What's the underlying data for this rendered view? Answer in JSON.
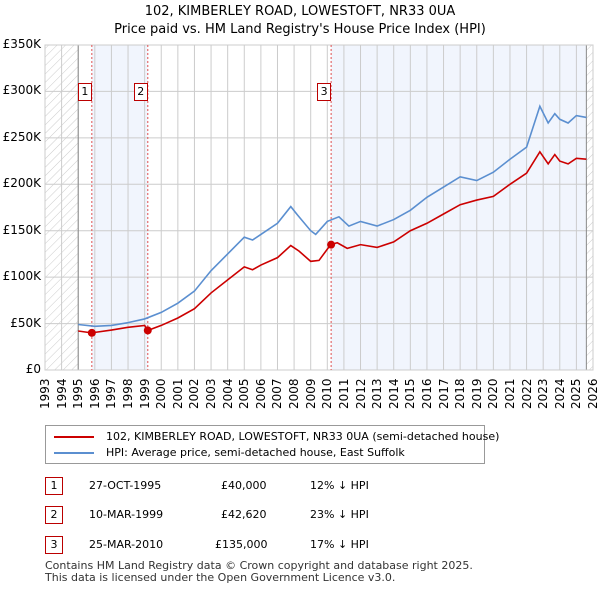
{
  "chart_data": {
    "type": "line",
    "title": "102, KIMBERLEY ROAD, LOWESTOFT, NR33 0UA",
    "subtitle": "Price paid vs. HM Land Registry's House Price Index (HPI)",
    "xlim": [
      1993,
      2026
    ],
    "ylim": [
      0,
      350000
    ],
    "y_ticks": [
      {
        "v": 0,
        "label": "£0"
      },
      {
        "v": 50000,
        "label": "£50K"
      },
      {
        "v": 100000,
        "label": "£100K"
      },
      {
        "v": 150000,
        "label": "£150K"
      },
      {
        "v": 200000,
        "label": "£200K"
      },
      {
        "v": 250000,
        "label": "£250K"
      },
      {
        "v": 300000,
        "label": "£300K"
      },
      {
        "v": 350000,
        "label": "£350K"
      }
    ],
    "x_ticks": [
      "1993",
      "1994",
      "1995",
      "1996",
      "1997",
      "1998",
      "1999",
      "2000",
      "2001",
      "2002",
      "2003",
      "2004",
      "2005",
      "2006",
      "2007",
      "2008",
      "2009",
      "2010",
      "2011",
      "2012",
      "2013",
      "2014",
      "2015",
      "2016",
      "2017",
      "2018",
      "2019",
      "2020",
      "2021",
      "2022",
      "2023",
      "2024",
      "2025",
      "2026"
    ],
    "series": [
      {
        "name": "102, KIMBERLEY ROAD, LOWESTOFT, NR33 0UA (semi-detached house)",
        "color": "#cc0000",
        "x": [
          1995,
          1995.8,
          1997,
          1998,
          1999,
          1999.2,
          2000,
          2001,
          2002,
          2003,
          2004,
          2005,
          2005.5,
          2006,
          2007,
          2007.8,
          2008.3,
          2009,
          2009.5,
          2010.2,
          2010.6,
          2011.2,
          2012,
          2013,
          2014,
          2015,
          2016,
          2017,
          2018,
          2019,
          2020,
          2021,
          2022,
          2022.8,
          2023.3,
          2023.7,
          2024,
          2024.5,
          2025,
          2025.6
        ],
        "y": [
          42000,
          40000,
          43000,
          46000,
          48000,
          42620,
          48000,
          56000,
          66000,
          83000,
          97000,
          111000,
          108000,
          113000,
          121000,
          134000,
          128000,
          117000,
          118000,
          135000,
          137000,
          131000,
          135000,
          132000,
          138000,
          150000,
          158000,
          168000,
          178000,
          183000,
          187000,
          200000,
          212000,
          235000,
          222000,
          232000,
          225000,
          222000,
          228000,
          227000
        ]
      },
      {
        "name": "HPI: Average price, semi-detached house, East Suffolk",
        "color": "#5b8fd0",
        "x": [
          1995,
          1996,
          1997,
          1998,
          1999,
          2000,
          2001,
          2002,
          2003,
          2004,
          2005,
          2005.5,
          2006,
          2007,
          2007.8,
          2008.2,
          2009,
          2009.3,
          2010,
          2010.7,
          2011.3,
          2012,
          2013,
          2014,
          2015,
          2016,
          2017,
          2018,
          2019,
          2020,
          2021,
          2022,
          2022.8,
          2023.3,
          2023.7,
          2024,
          2024.5,
          2025,
          2025.6
        ],
        "y": [
          49000,
          47000,
          48000,
          51000,
          55000,
          62000,
          72000,
          85000,
          107000,
          125000,
          143000,
          140000,
          146000,
          158000,
          176000,
          167000,
          150000,
          146000,
          160000,
          165000,
          155000,
          160000,
          155000,
          162000,
          172000,
          186000,
          197000,
          208000,
          204000,
          213000,
          227000,
          240000,
          284000,
          266000,
          276000,
          270000,
          266000,
          274000,
          272000
        ]
      }
    ],
    "sales": [
      {
        "n": "1",
        "date": "27-OCT-1995",
        "x": 1995.82,
        "price": "£40,000",
        "value": 40000,
        "hpi": "12% ↓ HPI"
      },
      {
        "n": "2",
        "date": "10-MAR-1999",
        "x": 1999.19,
        "price": "£42,620",
        "value": 42620,
        "hpi": "23% ↓ HPI"
      },
      {
        "n": "3",
        "date": "25-MAR-2010",
        "x": 2010.23,
        "price": "£135,000",
        "value": 135000,
        "hpi": "17% ↓ HPI"
      }
    ],
    "shaded_ranges": [
      [
        1995.82,
        1999.19
      ],
      [
        2010.23,
        2025.6
      ]
    ],
    "hatched_ranges": [
      [
        1993,
        1995
      ],
      [
        2025.6,
        2026
      ]
    ]
  },
  "footer": [
    "Contains HM Land Registry data © Crown copyright and database right 2025.",
    "This data is licensed under the Open Government Licence v3.0."
  ]
}
